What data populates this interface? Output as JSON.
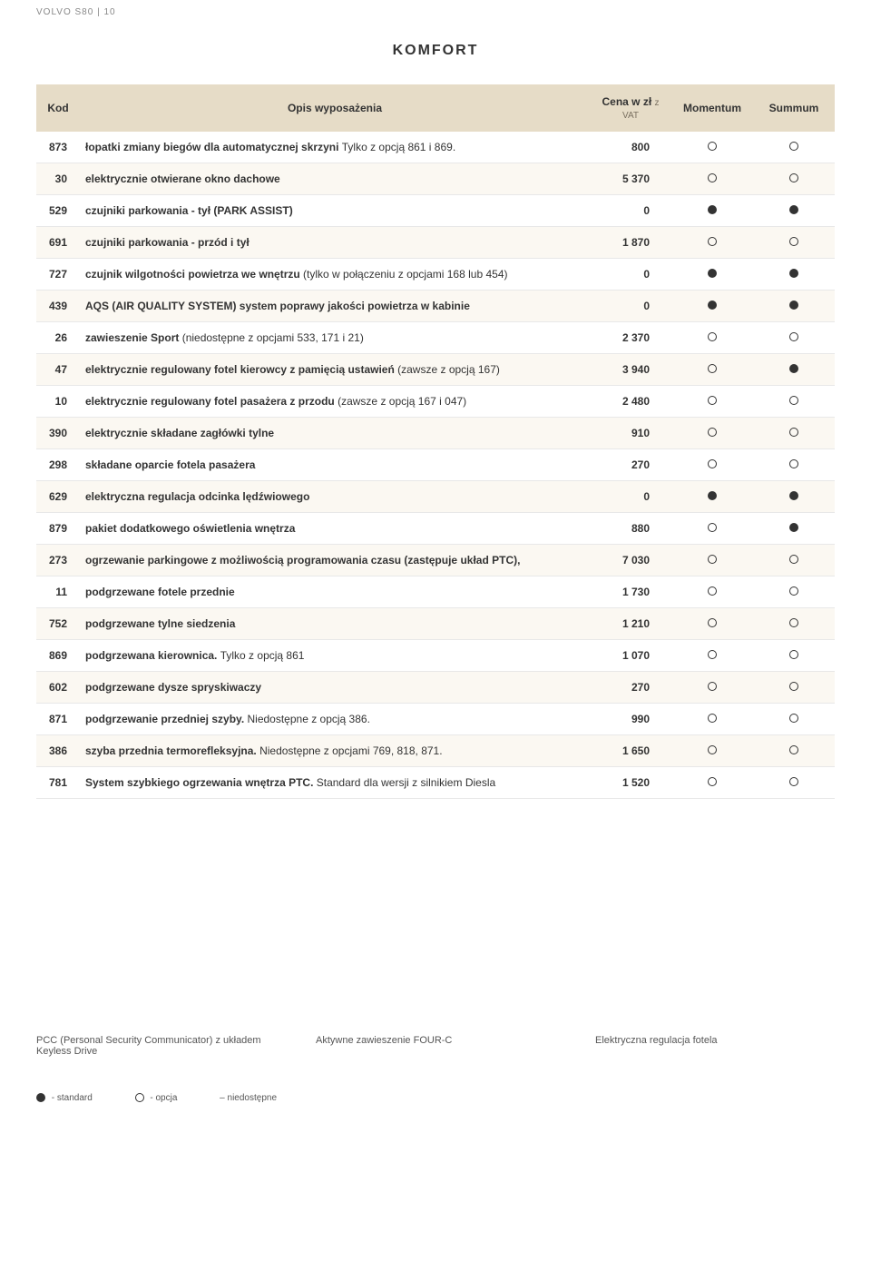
{
  "header": {
    "brandline": "VOLVO S80 | 10"
  },
  "section_title": "KOMFORT",
  "table": {
    "columns": {
      "kod": "Kod",
      "opis": "Opis wyposażenia",
      "cena_top": "Cena w zł",
      "cena_sub": "z VAT",
      "momentum": "Momentum",
      "summum": "Summum"
    },
    "rows": [
      {
        "kod": "873",
        "opis": "łopatki zmiany biegów dla automatycznej skrzyni",
        "note": "Tylko z opcją 861 i 869.",
        "cena": "800",
        "m": "opt",
        "s": "opt"
      },
      {
        "kod": "30",
        "opis": "elektrycznie otwierane okno dachowe",
        "cena": "5 370",
        "m": "opt",
        "s": "opt"
      },
      {
        "kod": "529",
        "opis": "czujniki parkowania - tył (PARK ASSIST)",
        "cena": "0",
        "m": "std",
        "s": "std"
      },
      {
        "kod": "691",
        "opis": "czujniki parkowania - przód i tył",
        "cena": "1 870",
        "m": "opt",
        "s": "opt"
      },
      {
        "kod": "727",
        "opis": "czujnik wilgotności powietrza we wnętrzu",
        "note": "(tylko w połączeniu z opcjami 168 lub 454)",
        "cena": "0",
        "m": "std",
        "s": "std"
      },
      {
        "kod": "439",
        "opis": "AQS (AIR QUALITY SYSTEM) system poprawy jakości powietrza w kabinie",
        "cena": "0",
        "m": "std",
        "s": "std"
      },
      {
        "kod": "26",
        "opis": "zawieszenie Sport",
        "note": "(niedostępne z opcjami 533, 171 i 21)",
        "cena": "2 370",
        "m": "opt",
        "s": "opt"
      },
      {
        "kod": "47",
        "opis": "elektrycznie regulowany fotel kierowcy z pamięcią ustawień",
        "note": "(zawsze z opcją 167)",
        "cena": "3 940",
        "m": "opt",
        "s": "std"
      },
      {
        "kod": "10",
        "opis": "elektrycznie regulowany fotel pasażera z przodu",
        "note": "(zawsze z opcją 167 i 047)",
        "cena": "2 480",
        "m": "opt",
        "s": "opt"
      },
      {
        "kod": "390",
        "opis": "elektrycznie składane zagłówki tylne",
        "cena": "910",
        "m": "opt",
        "s": "opt"
      },
      {
        "kod": "298",
        "opis": "składane oparcie fotela pasażera",
        "cena": "270",
        "m": "opt",
        "s": "opt"
      },
      {
        "kod": "629",
        "opis": "elektryczna regulacja odcinka lędźwiowego",
        "cena": "0",
        "m": "std",
        "s": "std"
      },
      {
        "kod": "879",
        "opis": "pakiet dodatkowego oświetlenia wnętrza",
        "cena": "880",
        "m": "opt",
        "s": "std"
      },
      {
        "kod": "273",
        "opis": "ogrzewanie parkingowe z możliwością programowania czasu (zastępuje układ PTC),",
        "cena": "7 030",
        "m": "opt",
        "s": "opt"
      },
      {
        "kod": "11",
        "opis": "podgrzewane fotele przednie",
        "cena": "1 730",
        "m": "opt",
        "s": "opt"
      },
      {
        "kod": "752",
        "opis": "podgrzewane tylne siedzenia",
        "cena": "1 210",
        "m": "opt",
        "s": "opt"
      },
      {
        "kod": "869",
        "opis": "podgrzewana kierownica.",
        "note": "Tylko z opcją 861",
        "cena": "1 070",
        "m": "opt",
        "s": "opt"
      },
      {
        "kod": "602",
        "opis": "podgrzewane dysze spryskiwaczy",
        "cena": "270",
        "m": "opt",
        "s": "opt"
      },
      {
        "kod": "871",
        "opis": "podgrzewanie przedniej szyby.",
        "note": "Niedostępne z opcją 386.",
        "cena": "990",
        "m": "opt",
        "s": "opt"
      },
      {
        "kod": "386",
        "opis": "szyba przednia termorefleksyjna.",
        "note": "Niedostępne z opcjami 769, 818, 871.",
        "cena": "1 650",
        "m": "opt",
        "s": "opt"
      },
      {
        "kod": "781",
        "opis": "System szybkiego ogrzewania wnętrza PTC.",
        "note": "Standard dla wersji z silnikiem Diesla",
        "cena": "1 520",
        "m": "opt",
        "s": "opt"
      }
    ]
  },
  "captions": {
    "left": "PCC (Personal Security Communicator) z układem Keyless Drive",
    "center": "Aktywne zawieszenie FOUR-C",
    "right": "Elektryczna regulacja fotela"
  },
  "legend": {
    "std": "- standard",
    "opt": "- opcja",
    "dash": "– niedostępne"
  },
  "colors": {
    "header_bg": "#e6dcc7",
    "row_alt": "#fbf8f2",
    "text": "#333333",
    "muted": "#888888"
  }
}
